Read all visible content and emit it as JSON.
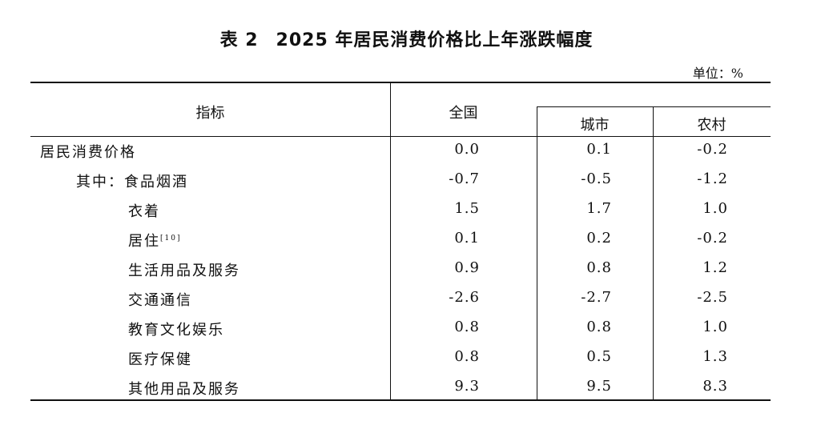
{
  "title": {
    "label": "表 2",
    "text": "2025 年居民消费价格比上年涨跌幅度"
  },
  "unit": "单位：%",
  "columns": {
    "indicator": "指标",
    "national": "全国",
    "urban": "城市",
    "rural": "农村"
  },
  "rows": [
    {
      "label": "居民消费价格",
      "note": "",
      "national": "0.0",
      "urban": "0.1",
      "rural": "-0.2"
    },
    {
      "label": "其中：食品烟酒",
      "note": "",
      "national": "-0.7",
      "urban": "-0.5",
      "rural": "-1.2"
    },
    {
      "label": "衣着",
      "note": "",
      "national": "1.5",
      "urban": "1.7",
      "rural": "1.0"
    },
    {
      "label": "居住",
      "note": "[10]",
      "national": "0.1",
      "urban": "0.2",
      "rural": "-0.2"
    },
    {
      "label": "生活用品及服务",
      "note": "",
      "national": "0.9",
      "urban": "0.8",
      "rural": "1.2"
    },
    {
      "label": "交通通信",
      "note": "",
      "national": "-2.6",
      "urban": "-2.7",
      "rural": "-2.5"
    },
    {
      "label": "教育文化娱乐",
      "note": "",
      "national": "0.8",
      "urban": "0.8",
      "rural": "1.0"
    },
    {
      "label": "医疗保健",
      "note": "",
      "national": "0.8",
      "urban": "0.5",
      "rural": "1.3"
    },
    {
      "label": "其他用品及服务",
      "note": "",
      "national": "9.3",
      "urban": "9.5",
      "rural": "8.3"
    }
  ]
}
